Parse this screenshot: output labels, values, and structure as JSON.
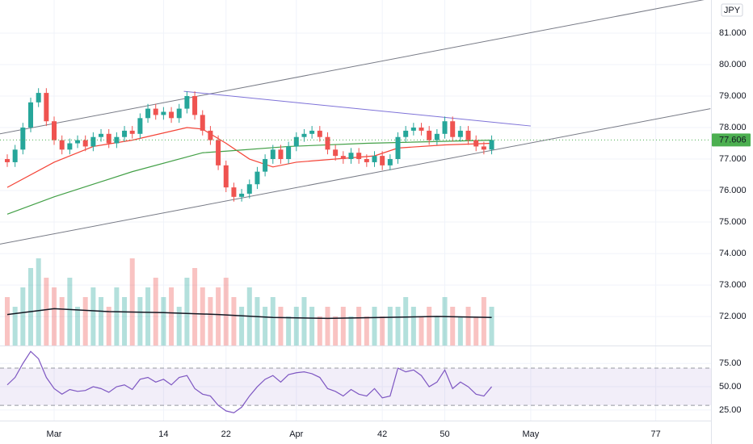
{
  "chart_data": {
    "type": "candlestick",
    "currency": "JPY",
    "x": [
      -6,
      -5,
      -4,
      -3,
      -2,
      -1,
      0,
      1,
      2,
      3,
      4,
      5,
      6,
      7,
      8,
      9,
      10,
      11,
      12,
      13,
      14,
      15,
      16,
      17,
      18,
      19,
      20,
      21,
      22,
      23,
      24,
      25,
      26,
      27,
      28,
      29,
      30,
      31,
      32,
      33,
      34,
      35,
      36,
      37,
      38,
      39,
      40,
      41,
      42,
      43,
      44,
      45,
      46,
      47,
      48,
      49,
      50,
      51,
      52,
      53,
      54,
      55,
      56
    ],
    "open": [
      77.0,
      76.9,
      77.3,
      78.0,
      78.8,
      79.1,
      78.2,
      77.6,
      77.3,
      77.5,
      77.6,
      77.4,
      77.7,
      77.8,
      77.5,
      77.7,
      77.9,
      77.8,
      78.3,
      78.6,
      78.4,
      78.5,
      78.3,
      78.6,
      79.0,
      78.4,
      77.9,
      77.6,
      76.8,
      76.1,
      75.8,
      75.9,
      76.2,
      76.6,
      77.0,
      77.3,
      77.0,
      77.4,
      77.7,
      77.8,
      77.9,
      77.7,
      77.3,
      77.1,
      77.0,
      77.2,
      77.0,
      76.9,
      77.1,
      76.8,
      77.0,
      77.7,
      77.9,
      78.0,
      77.9,
      77.6,
      77.8,
      78.2,
      77.7,
      77.9,
      77.6,
      77.4,
      77.3
    ],
    "high": [
      77.15,
      77.45,
      78.15,
      78.95,
      79.25,
      79.25,
      78.35,
      77.75,
      77.65,
      77.75,
      77.75,
      77.85,
      77.95,
      77.95,
      77.85,
      78.05,
      78.05,
      78.45,
      78.75,
      78.75,
      78.65,
      78.65,
      78.75,
      79.15,
      79.15,
      78.55,
      78.05,
      77.75,
      76.95,
      76.25,
      76.05,
      76.35,
      76.75,
      77.15,
      77.45,
      77.45,
      77.55,
      77.85,
      77.95,
      78.05,
      78.05,
      77.85,
      77.45,
      77.25,
      77.35,
      77.35,
      77.15,
      77.25,
      77.25,
      77.15,
      77.85,
      78.05,
      78.15,
      78.15,
      78.05,
      77.95,
      78.35,
      78.35,
      78.05,
      78.05,
      77.75,
      77.55,
      77.75
    ],
    "low": [
      76.75,
      76.75,
      77.15,
      77.85,
      78.65,
      78.05,
      77.45,
      77.15,
      77.15,
      77.35,
      77.25,
      77.25,
      77.55,
      77.35,
      77.35,
      77.55,
      77.65,
      77.65,
      78.15,
      78.25,
      78.25,
      78.15,
      78.15,
      78.45,
      78.25,
      77.75,
      77.45,
      76.65,
      75.95,
      75.65,
      75.65,
      75.75,
      76.05,
      76.45,
      76.85,
      76.85,
      76.85,
      77.25,
      77.55,
      77.65,
      77.55,
      77.15,
      76.95,
      76.85,
      76.85,
      76.85,
      76.75,
      76.75,
      76.65,
      76.65,
      76.85,
      77.55,
      77.75,
      77.75,
      77.45,
      77.45,
      77.65,
      77.55,
      77.55,
      77.45,
      77.25,
      77.15,
      77.15
    ],
    "close": [
      76.9,
      77.3,
      78.0,
      78.8,
      79.1,
      78.2,
      77.6,
      77.3,
      77.5,
      77.6,
      77.4,
      77.7,
      77.8,
      77.5,
      77.7,
      77.9,
      77.8,
      78.3,
      78.6,
      78.4,
      78.5,
      78.3,
      78.6,
      79.0,
      78.4,
      77.9,
      77.6,
      76.8,
      76.1,
      75.8,
      75.9,
      76.2,
      76.6,
      77.0,
      77.3,
      77.0,
      77.4,
      77.7,
      77.8,
      77.9,
      77.7,
      77.3,
      77.1,
      77.0,
      77.2,
      77.0,
      76.9,
      77.1,
      76.8,
      77.0,
      77.7,
      77.9,
      78.0,
      77.9,
      77.6,
      77.8,
      78.2,
      77.7,
      77.9,
      77.6,
      77.4,
      77.3,
      77.606
    ],
    "up_color": "#26a69a",
    "down_color": "#ef5350",
    "xlim": [
      -6.93,
      84.07
    ],
    "xticks": [
      {
        "value": 0,
        "label": "Mar"
      },
      14,
      22,
      {
        "value": 31,
        "label": "Apr"
      },
      42,
      50,
      {
        "value": 61,
        "label": "May"
      },
      77
    ],
    "ylim": [
      71.08,
      82.05
    ],
    "yticks": [
      {
        "value": 72,
        "label": "72.000"
      },
      {
        "value": 73,
        "label": "73.000"
      },
      {
        "value": 74,
        "label": "74.000"
      },
      {
        "value": 75,
        "label": "75.000"
      },
      {
        "value": 76,
        "label": "76.000"
      },
      {
        "value": 77,
        "label": "77.000"
      },
      {
        "value": 78,
        "label": "78.000"
      },
      {
        "value": 79,
        "label": "79.000"
      },
      {
        "value": 80,
        "label": "80.000"
      },
      {
        "value": 81,
        "label": "81.000"
      }
    ],
    "grid": true,
    "last_price": 77.606,
    "last_price_color": "#4caf50",
    "moving_averages": [
      {
        "color": "#f44336",
        "x": [
          -6,
          0,
          5,
          10,
          17,
          19,
          22,
          25,
          28,
          31,
          36,
          41,
          44,
          50,
          56
        ],
        "values": [
          76.1,
          76.9,
          77.4,
          77.6,
          78.0,
          77.95,
          77.5,
          77.0,
          76.75,
          76.9,
          77.0,
          77.1,
          77.35,
          77.45,
          77.5
        ]
      },
      {
        "color": "#43a047",
        "x": [
          -6,
          0,
          10,
          19,
          22,
          30,
          40,
          56
        ],
        "values": [
          75.25,
          75.8,
          76.6,
          77.2,
          77.25,
          77.4,
          77.5,
          77.6
        ]
      }
    ],
    "trend_lines": [
      {
        "color": "#787b86",
        "x": [
          -6.93,
          84
        ],
        "y": [
          77.8,
          82.1
        ]
      },
      {
        "color": "#787b86",
        "x": [
          -6.93,
          84
        ],
        "y": [
          74.3,
          78.6
        ]
      },
      {
        "color": "#7e72d8",
        "x": [
          16.6,
          61
        ],
        "y": [
          79.15,
          78.05
        ]
      }
    ],
    "volume": {
      "ylim": [
        0,
        10
      ],
      "values": [
        5,
        4,
        6,
        8,
        9,
        7,
        6,
        5,
        7,
        4,
        5,
        6,
        5,
        4,
        6,
        5,
        9,
        5,
        6,
        7,
        5,
        6,
        4,
        7,
        8,
        6,
        5,
        6,
        7,
        5,
        4,
        6,
        5,
        4,
        5,
        4,
        3,
        4,
        5,
        4,
        3,
        4,
        3,
        4,
        3,
        4,
        3,
        4,
        3,
        4,
        4,
        5,
        4,
        3,
        4,
        3,
        5,
        4,
        3,
        4,
        3,
        5,
        4
      ],
      "ma_color": "#131722",
      "ma_x": [
        -6,
        0,
        7,
        14,
        21,
        28,
        35,
        42,
        49,
        56
      ],
      "ma_values": [
        3.2,
        3.8,
        3.5,
        3.4,
        3.2,
        2.9,
        2.8,
        2.9,
        3.0,
        2.9
      ]
    },
    "rsi": {
      "color": "#7e57c2",
      "ylim": [
        13.6,
        94.3
      ],
      "yticks": [
        {
          "value": 25,
          "label": "25.00"
        },
        {
          "value": 50,
          "label": "50.00"
        },
        {
          "value": 75,
          "label": "75.00"
        }
      ],
      "band": [
        30,
        70
      ],
      "values": [
        52,
        60,
        75,
        88,
        80,
        60,
        48,
        42,
        47,
        45,
        46,
        50,
        48,
        44,
        50,
        52,
        47,
        58,
        60,
        55,
        58,
        52,
        60,
        62,
        48,
        42,
        40,
        30,
        24,
        22,
        28,
        40,
        50,
        58,
        62,
        55,
        63,
        65,
        66,
        64,
        60,
        48,
        45,
        40,
        47,
        42,
        40,
        48,
        38,
        40,
        70,
        66,
        68,
        62,
        50,
        55,
        68,
        48,
        55,
        50,
        42,
        40,
        50
      ]
    }
  }
}
